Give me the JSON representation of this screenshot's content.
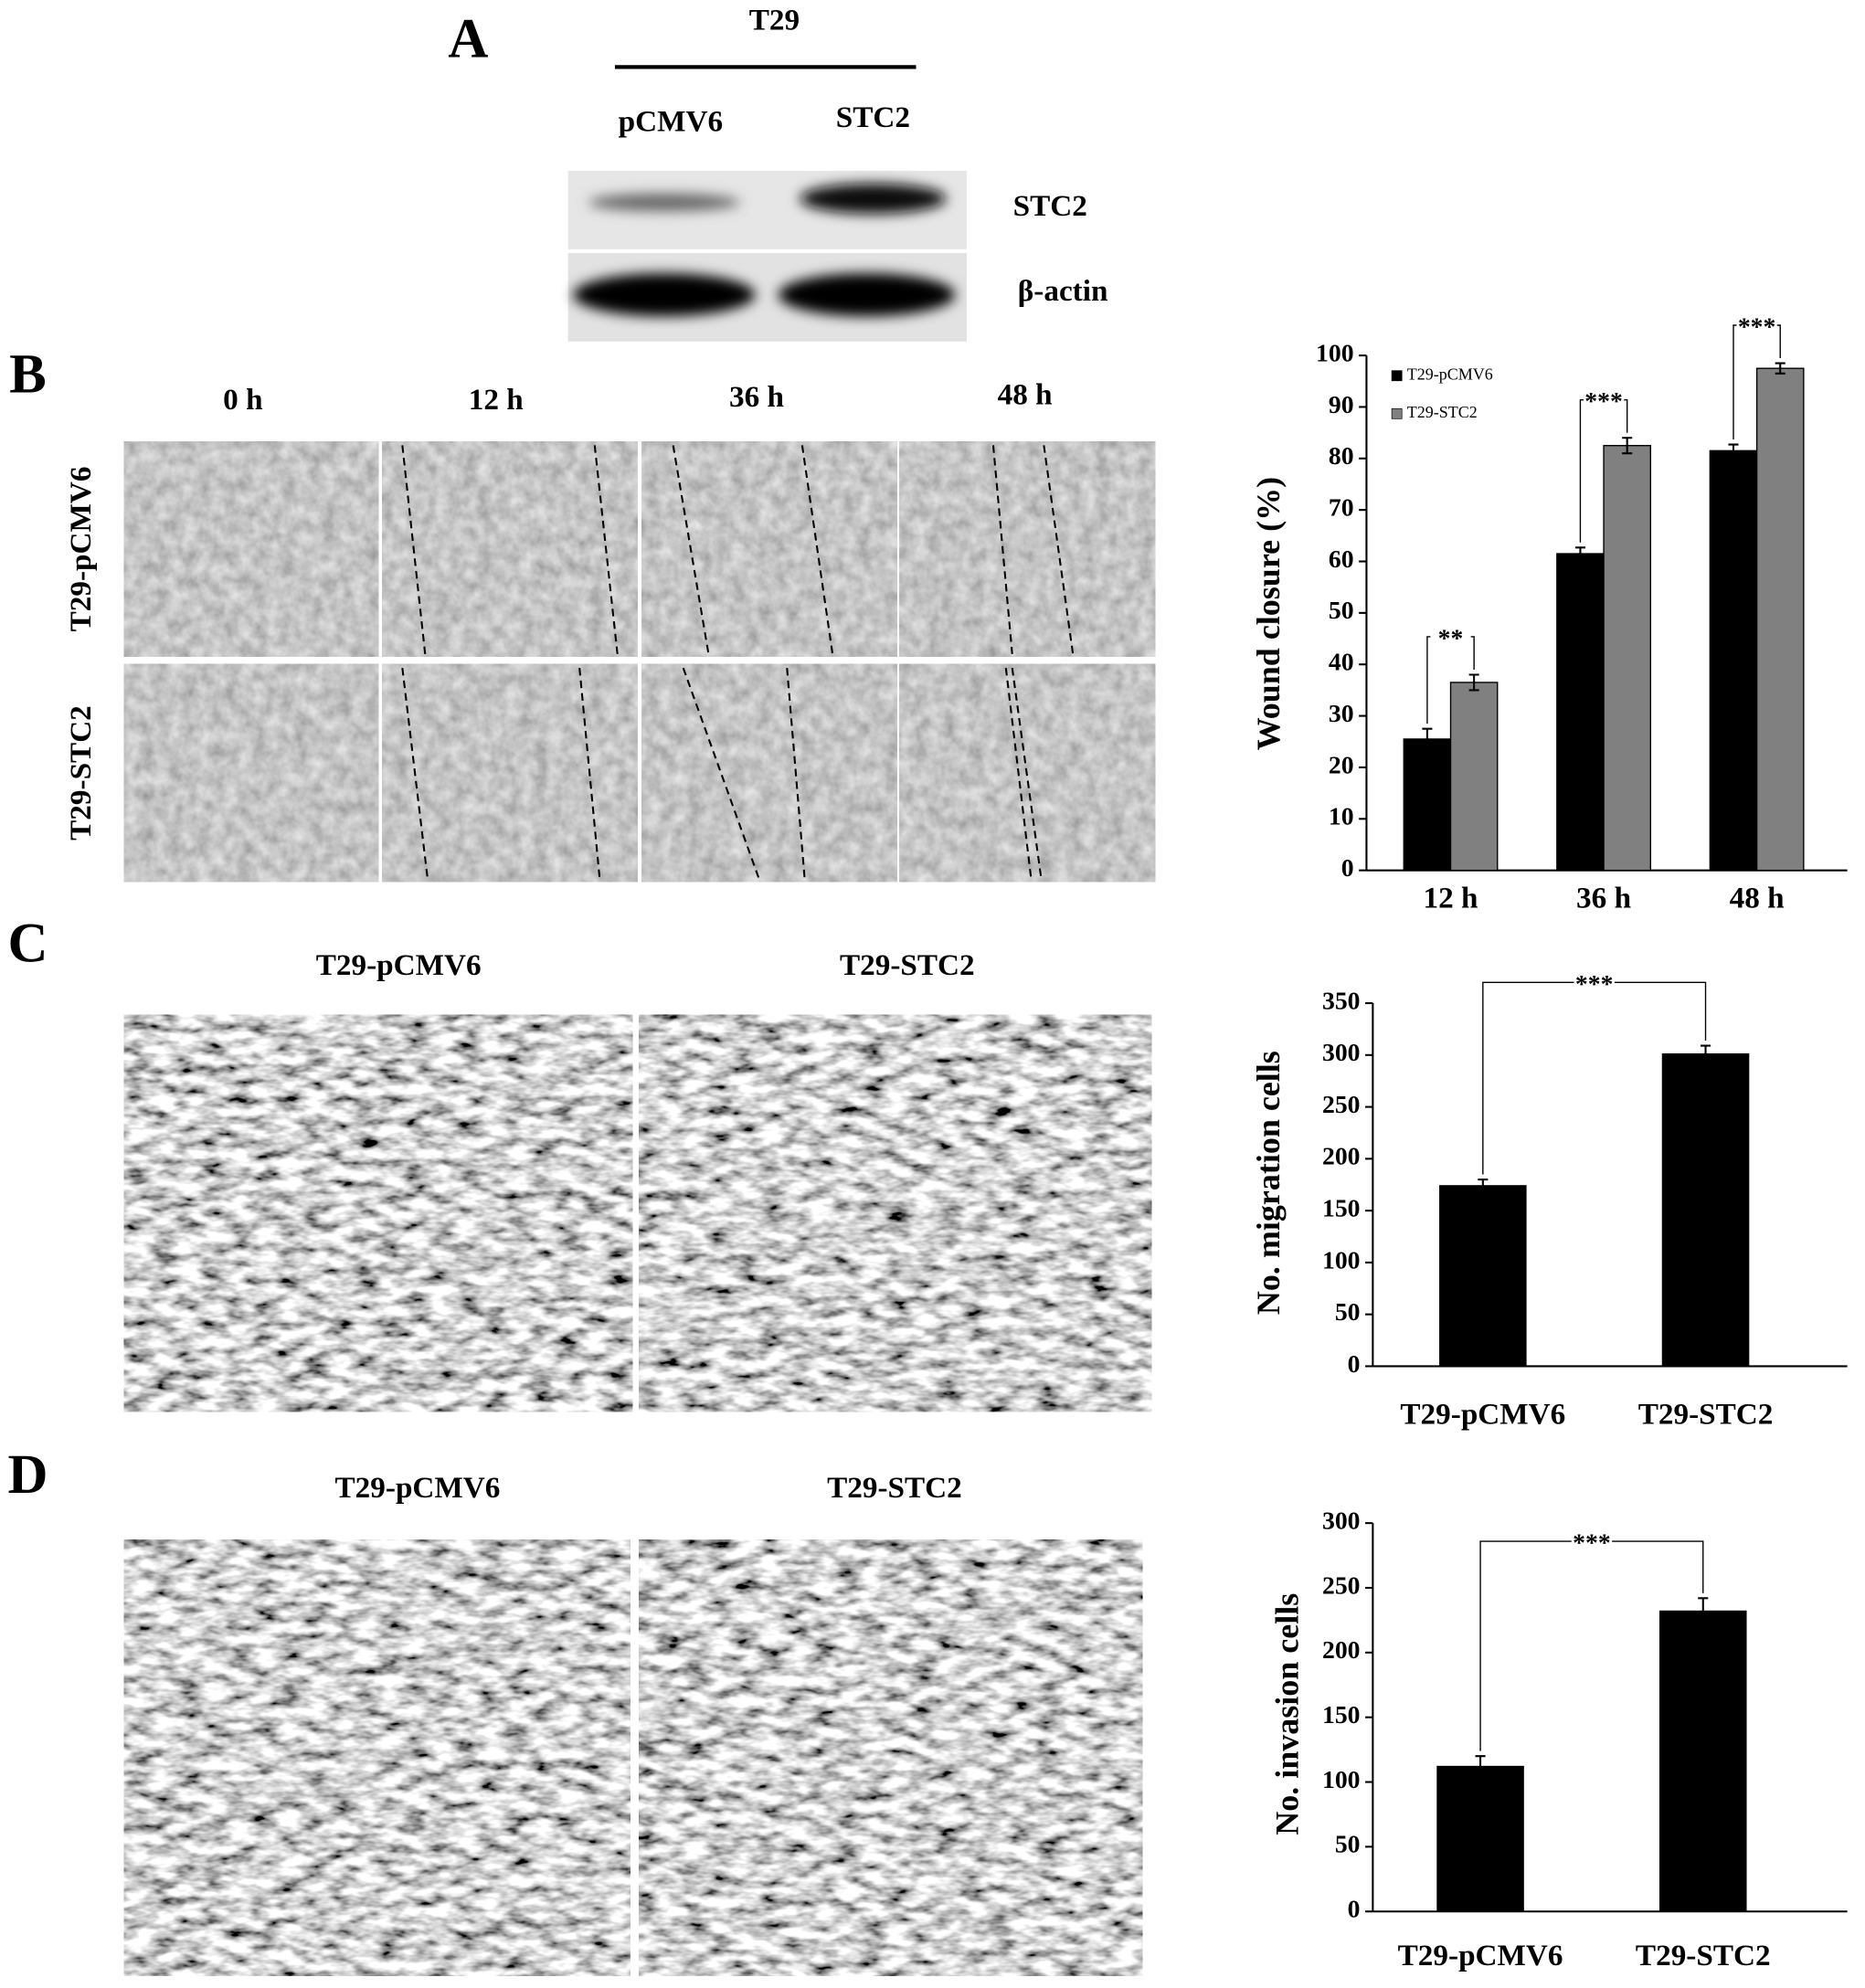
{
  "panels": {
    "A": {
      "letter": "A",
      "cell_line": "T29",
      "lanes": [
        "pCMV6",
        "STC2"
      ],
      "bands": [
        "STC2",
        "β-actin"
      ]
    },
    "B": {
      "letter": "B",
      "timepoints": [
        "0 h",
        "12 h",
        "36 h",
        "48 h"
      ],
      "rows": [
        "T29-pCMV6",
        "T29-STC2"
      ]
    },
    "C": {
      "letter": "C",
      "images": [
        "T29-pCMV6",
        "T29-STC2"
      ]
    },
    "D": {
      "letter": "D",
      "images": [
        "T29-pCMV6",
        "T29-STC2"
      ]
    }
  },
  "chart_data": [
    {
      "type": "bar",
      "y_label": "Wound closure (%)",
      "categories": [
        "12 h",
        "36 h",
        "48 h"
      ],
      "series": [
        {
          "name": "T29-pCMV6",
          "color": "#000000",
          "values": [
            25.5,
            61.5,
            81.5
          ],
          "errors": [
            2,
            1.2,
            1.2
          ]
        },
        {
          "name": "T29-STC2",
          "color": "#808080",
          "values": [
            36.5,
            82.5,
            97.5
          ],
          "errors": [
            1.5,
            1.5,
            1
          ]
        }
      ],
      "significance": [
        "**",
        "***",
        "***"
      ],
      "legend": "upper left",
      "ylim": [
        0,
        100
      ],
      "yticks": [
        0,
        10,
        20,
        30,
        40,
        50,
        60,
        70,
        80,
        90,
        100
      ]
    },
    {
      "type": "bar",
      "y_label": "No. migration cells",
      "categories": [
        "T29-pCMV6",
        "T29-STC2"
      ],
      "values": [
        174,
        301
      ],
      "errors": [
        6,
        8
      ],
      "color": "#000000",
      "significance": [
        "***"
      ],
      "ylim": [
        0,
        350
      ],
      "yticks": [
        0,
        50,
        100,
        150,
        200,
        250,
        300,
        350
      ]
    },
    {
      "type": "bar",
      "y_label": "No. invasion cells",
      "categories": [
        "T29-pCMV6",
        "T29-STC2"
      ],
      "values": [
        112,
        232
      ],
      "errors": [
        8,
        10
      ],
      "color": "#000000",
      "significance": [
        "***"
      ],
      "ylim": [
        0,
        300
      ],
      "yticks": [
        0,
        50,
        100,
        150,
        200,
        250,
        300
      ]
    }
  ]
}
